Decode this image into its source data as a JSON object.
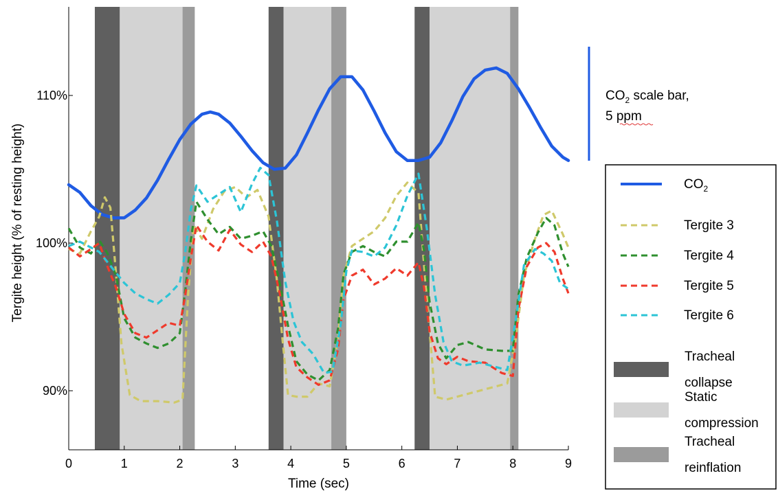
{
  "chart_data": {
    "type": "line",
    "xlabel": "Time (sec)",
    "ylabel": "Tergite height (% of resting height)",
    "xlim": [
      0,
      9
    ],
    "ylim": [
      86,
      116
    ],
    "x_ticks": [
      "0",
      "1",
      "2",
      "3",
      "4",
      "5",
      "6",
      "7",
      "8",
      "9"
    ],
    "y_ticks": [
      {
        "value": 90,
        "label": "90%"
      },
      {
        "value": 100,
        "label": "100%"
      },
      {
        "value": 110,
        "label": "110%"
      }
    ],
    "grid": false,
    "legend_position": "right",
    "phases": [
      {
        "kind": "collapse",
        "start": 0.47,
        "end": 0.92
      },
      {
        "kind": "compression",
        "start": 0.92,
        "end": 2.05
      },
      {
        "kind": "reinflation",
        "start": 2.05,
        "end": 2.27
      },
      {
        "kind": "collapse",
        "start": 3.6,
        "end": 3.87
      },
      {
        "kind": "compression",
        "start": 3.87,
        "end": 4.73
      },
      {
        "kind": "reinflation",
        "start": 4.73,
        "end": 5.0
      },
      {
        "kind": "collapse",
        "start": 6.23,
        "end": 6.5
      },
      {
        "kind": "compression",
        "start": 6.5,
        "end": 7.95
      },
      {
        "kind": "reinflation",
        "start": 7.95,
        "end": 8.1
      }
    ],
    "phase_colors": {
      "collapse": "#5f5f5f",
      "compression": "#d3d3d3",
      "reinflation": "#9b9b9b"
    },
    "series": [
      {
        "name": "CO",
        "name_sub": "2",
        "color": "#1f5be3",
        "style": "solid",
        "axis": "co2",
        "x": [
          0,
          0.2,
          0.4,
          0.6,
          0.8,
          1.0,
          1.2,
          1.4,
          1.6,
          1.8,
          2.0,
          2.2,
          2.4,
          2.55,
          2.7,
          2.9,
          3.1,
          3.3,
          3.5,
          3.7,
          3.9,
          4.1,
          4.3,
          4.5,
          4.7,
          4.9,
          5.1,
          5.3,
          5.5,
          5.7,
          5.9,
          6.1,
          6.3,
          6.5,
          6.7,
          6.9,
          7.1,
          7.3,
          7.5,
          7.7,
          7.9,
          8.1,
          8.3,
          8.5,
          8.7,
          8.9,
          9.0
        ],
        "y": [
          107.8,
          107.1,
          105.9,
          105.1,
          104.8,
          104.8,
          105.5,
          106.6,
          108.2,
          110.1,
          111.9,
          113.3,
          114.2,
          114.4,
          114.2,
          113.4,
          112.2,
          110.9,
          109.8,
          109.2,
          109.3,
          110.5,
          112.5,
          114.6,
          116.5,
          117.6,
          117.6,
          116.4,
          114.5,
          112.5,
          110.8,
          110.0,
          110.0,
          110.3,
          111.6,
          113.6,
          115.8,
          117.4,
          118.2,
          118.4,
          117.9,
          116.5,
          114.8,
          113.0,
          111.3,
          110.3,
          110.0
        ]
      },
      {
        "name": "Tergite 3",
        "color": "#cfc96a",
        "style": "dashed",
        "axis": "height",
        "x": [
          0,
          0.2,
          0.4,
          0.55,
          0.65,
          0.75,
          0.85,
          0.95,
          1.1,
          1.3,
          1.6,
          1.9,
          2.05,
          2.15,
          2.25,
          2.4,
          2.6,
          2.8,
          3.0,
          3.2,
          3.4,
          3.6,
          3.75,
          3.85,
          3.95,
          4.1,
          4.3,
          4.5,
          4.7,
          4.85,
          4.95,
          5.1,
          5.3,
          5.5,
          5.7,
          5.9,
          6.1,
          6.3,
          6.4,
          6.5,
          6.6,
          6.8,
          7.0,
          7.3,
          7.6,
          7.9,
          8.05,
          8.2,
          8.4,
          8.55,
          8.7,
          8.9,
          9.0
        ],
        "y": [
          99.6,
          99.3,
          100.8,
          101.8,
          103.1,
          102.4,
          98.0,
          93.2,
          89.7,
          89.3,
          89.3,
          89.2,
          89.4,
          96.5,
          101.2,
          100.3,
          102.3,
          103.5,
          103.8,
          103.1,
          103.6,
          101.8,
          97.5,
          93.5,
          89.7,
          89.6,
          89.6,
          90.5,
          90.3,
          93.5,
          97.8,
          99.8,
          100.3,
          100.8,
          101.7,
          103.2,
          104.1,
          103.4,
          98.5,
          94.0,
          89.6,
          89.4,
          89.6,
          89.9,
          90.2,
          90.5,
          93.5,
          97.8,
          100.3,
          101.9,
          102.2,
          100.6,
          99.7
        ]
      },
      {
        "name": "Tergite 4",
        "color": "#2f8f2f",
        "style": "dashed",
        "axis": "height",
        "x": [
          0,
          0.2,
          0.4,
          0.55,
          0.7,
          0.85,
          1.0,
          1.2,
          1.4,
          1.6,
          1.8,
          2.0,
          2.1,
          2.2,
          2.3,
          2.5,
          2.7,
          2.9,
          3.1,
          3.3,
          3.5,
          3.65,
          3.8,
          3.95,
          4.1,
          4.3,
          4.5,
          4.7,
          4.85,
          4.95,
          5.1,
          5.3,
          5.5,
          5.7,
          5.9,
          6.1,
          6.3,
          6.4,
          6.5,
          6.65,
          6.8,
          7.0,
          7.2,
          7.5,
          7.8,
          8.0,
          8.1,
          8.25,
          8.45,
          8.6,
          8.75,
          8.9,
          9.0
        ],
        "y": [
          101.0,
          99.7,
          99.3,
          100.2,
          99.3,
          97.8,
          94.9,
          93.6,
          93.2,
          92.9,
          93.2,
          93.9,
          96.8,
          100.2,
          102.8,
          101.6,
          100.6,
          101.1,
          100.3,
          100.5,
          100.8,
          99.8,
          97.3,
          94.4,
          92.0,
          91.1,
          90.7,
          91.4,
          94.2,
          97.9,
          99.4,
          99.8,
          99.4,
          99.1,
          100.1,
          100.1,
          101.4,
          99.5,
          96.0,
          93.2,
          92.2,
          93.1,
          93.3,
          92.8,
          92.7,
          92.7,
          96.5,
          99.0,
          100.7,
          101.7,
          101.2,
          99.3,
          98.4
        ]
      },
      {
        "name": "Tergite 5",
        "color": "#ef3a2c",
        "style": "dashed",
        "axis": "height",
        "x": [
          0,
          0.2,
          0.4,
          0.55,
          0.7,
          0.85,
          1.0,
          1.2,
          1.4,
          1.6,
          1.8,
          2.0,
          2.1,
          2.2,
          2.3,
          2.5,
          2.7,
          2.9,
          3.1,
          3.3,
          3.5,
          3.65,
          3.8,
          3.95,
          4.1,
          4.3,
          4.5,
          4.7,
          4.85,
          4.95,
          5.1,
          5.3,
          5.5,
          5.7,
          5.9,
          6.1,
          6.3,
          6.4,
          6.5,
          6.65,
          6.8,
          7.0,
          7.2,
          7.5,
          7.8,
          8.0,
          8.1,
          8.25,
          8.45,
          8.6,
          8.75,
          8.9,
          9.0
        ],
        "y": [
          99.7,
          99.1,
          99.6,
          100.0,
          98.4,
          97.0,
          95.2,
          93.9,
          93.6,
          94.1,
          94.6,
          94.4,
          96.5,
          99.0,
          101.2,
          100.1,
          99.5,
          100.9,
          99.9,
          99.4,
          100.1,
          99.1,
          96.6,
          93.5,
          91.6,
          90.9,
          90.4,
          90.7,
          92.8,
          96.2,
          97.8,
          98.2,
          97.2,
          97.6,
          98.3,
          97.8,
          98.7,
          97.0,
          94.0,
          92.2,
          91.8,
          92.3,
          92.0,
          91.9,
          91.2,
          91.0,
          95.5,
          98.4,
          99.7,
          100.0,
          99.4,
          97.6,
          96.6
        ]
      },
      {
        "name": "Tergite 6",
        "color": "#2cc4d6",
        "style": "dashed",
        "axis": "height",
        "x": [
          0,
          0.2,
          0.4,
          0.55,
          0.7,
          0.85,
          1.0,
          1.2,
          1.4,
          1.6,
          1.8,
          2.0,
          2.1,
          2.2,
          2.3,
          2.5,
          2.7,
          2.9,
          3.1,
          3.3,
          3.45,
          3.6,
          3.75,
          3.9,
          4.05,
          4.2,
          4.4,
          4.6,
          4.75,
          4.9,
          5.0,
          5.1,
          5.3,
          5.5,
          5.7,
          5.9,
          6.1,
          6.3,
          6.45,
          6.6,
          6.75,
          6.9,
          7.1,
          7.4,
          7.7,
          7.9,
          8.05,
          8.2,
          8.4,
          8.55,
          8.7,
          8.85,
          9.0
        ],
        "y": [
          99.8,
          100.1,
          99.7,
          99.4,
          98.7,
          98.0,
          97.3,
          96.6,
          96.2,
          95.9,
          96.5,
          97.3,
          99.4,
          102.3,
          103.9,
          102.8,
          103.3,
          103.8,
          102.1,
          104.0,
          105.1,
          104.6,
          101.5,
          97.4,
          94.7,
          93.3,
          92.5,
          91.2,
          91.3,
          94.5,
          98.1,
          99.5,
          99.4,
          99.1,
          99.7,
          101.2,
          103.2,
          104.7,
          101.0,
          96.5,
          93.3,
          92.0,
          91.7,
          91.9,
          91.6,
          91.4,
          94.8,
          98.5,
          99.6,
          99.3,
          98.8,
          97.3,
          96.9
        ]
      }
    ],
    "co2_scale_bar": {
      "label": "CO",
      "label_sub": "2",
      "label_rest": " scale bar,",
      "value": "5 ppm"
    },
    "legend": [
      {
        "label": "CO",
        "label_sub": "2",
        "kind": "line",
        "color": "#1f5be3",
        "style": "solid"
      },
      {
        "label": "Tergite 3",
        "kind": "line",
        "color": "#cfc96a",
        "style": "dashed"
      },
      {
        "label": "Tergite 4",
        "kind": "line",
        "color": "#2f8f2f",
        "style": "dashed"
      },
      {
        "label": "Tergite 5",
        "kind": "line",
        "color": "#ef3a2c",
        "style": "dashed"
      },
      {
        "label": "Tergite 6",
        "kind": "line",
        "color": "#2cc4d6",
        "style": "dashed"
      },
      {
        "label": [
          "Tracheal",
          "collapse"
        ],
        "kind": "swatch",
        "color": "#5f5f5f"
      },
      {
        "label": [
          "Static",
          "compression"
        ],
        "kind": "swatch",
        "color": "#d3d3d3"
      },
      {
        "label": [
          "Tracheal",
          "reinflation"
        ],
        "kind": "swatch",
        "color": "#9b9b9b"
      }
    ]
  }
}
